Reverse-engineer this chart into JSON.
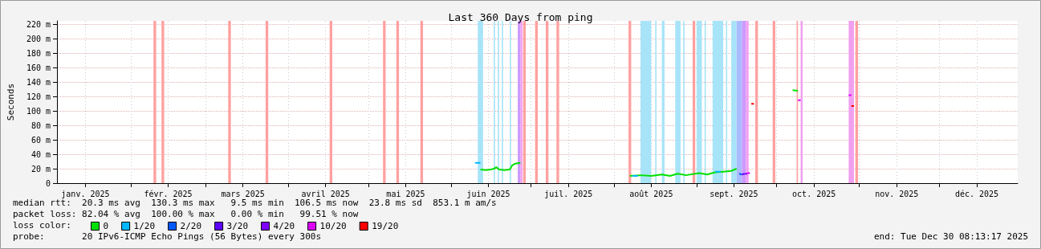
{
  "chart_data": {
    "type": "line",
    "title": "Last 360 Days from ping",
    "ylabel": "Seconds",
    "legend_title": "loss color:",
    "legend": "bottom left",
    "grid": true,
    "xlim": [
      "2025-01-04T08:13",
      "2025-12-30T08:13"
    ],
    "xticks": [
      {
        "value": "2025-01-15",
        "label": "janv. 2025"
      },
      {
        "value": "2025-02-01",
        "label": null
      },
      {
        "value": "2025-02-15",
        "label": "févr. 2025"
      },
      {
        "value": "2025-03-01",
        "label": null
      },
      {
        "value": "2025-03-15",
        "label": "mars 2025"
      },
      {
        "value": "2025-04-01",
        "label": null
      },
      {
        "value": "2025-04-15",
        "label": "avril 2025"
      },
      {
        "value": "2025-05-01",
        "label": null
      },
      {
        "value": "2025-05-15",
        "label": "mai 2025"
      },
      {
        "value": "2025-06-01",
        "label": null
      },
      {
        "value": "2025-06-15",
        "label": "juin 2025"
      },
      {
        "value": "2025-07-01",
        "label": null
      },
      {
        "value": "2025-07-15",
        "label": "juil. 2025"
      },
      {
        "value": "2025-08-01",
        "label": null
      },
      {
        "value": "2025-08-15",
        "label": "août 2025"
      },
      {
        "value": "2025-09-01",
        "label": null
      },
      {
        "value": "2025-09-15",
        "label": "sept. 2025"
      },
      {
        "value": "2025-10-01",
        "label": null
      },
      {
        "value": "2025-10-15",
        "label": "oct. 2025"
      },
      {
        "value": "2025-11-01",
        "label": null
      },
      {
        "value": "2025-11-15",
        "label": "nov. 2025"
      },
      {
        "value": "2025-12-01",
        "label": null
      },
      {
        "value": "2025-12-15",
        "label": "déc. 2025"
      }
    ],
    "ylim": [
      0,
      225
    ],
    "yticks": [
      0,
      {
        "value": 20,
        "label": "20 m"
      },
      {
        "value": 40,
        "label": "40 m"
      },
      {
        "value": 60,
        "label": "60 m"
      },
      {
        "value": 80,
        "label": "80 m"
      },
      {
        "value": 100,
        "label": "100 m"
      },
      {
        "value": 120,
        "label": "120 m"
      },
      {
        "value": 140,
        "label": "140 m"
      },
      {
        "value": 160,
        "label": "160 m"
      },
      {
        "value": 180,
        "label": "180 m"
      },
      {
        "value": 200,
        "label": "200 m"
      },
      {
        "value": 220,
        "label": "220 m"
      }
    ],
    "series": [
      {
        "name": "0",
        "color": "#00e000",
        "x": [
          "2025-06-12",
          "2025-06-14",
          "2025-06-16",
          "2025-06-17",
          "2025-06-18",
          "2025-06-19",
          "2025-06-21",
          "2025-06-23",
          "2025-06-24",
          "2025-06-25",
          "2025-06-27",
          "2025-07-15",
          "2025-08-07",
          "2025-08-11",
          "2025-08-15",
          "2025-08-19",
          "2025-08-22",
          "2025-08-25",
          "2025-08-28",
          "2025-09-02",
          "2025-09-05",
          "2025-09-08",
          "2025-09-11",
          "2025-09-14",
          "2025-09-16",
          "2025-09-25",
          "2025-10-07",
          "2025-10-09"
        ],
        "values": [
          19,
          18,
          19,
          20,
          22,
          19,
          18,
          19,
          25,
          27,
          28,
          null,
          10,
          11,
          10,
          12,
          10,
          13,
          11,
          14,
          12,
          15,
          16,
          17,
          20,
          null,
          129,
          128
        ]
      },
      {
        "name": "1/20",
        "color": "#00b8ff",
        "x": [
          "2025-06-10",
          "2025-06-12",
          "2025-07-15",
          "2025-08-08",
          "2025-08-10",
          "2025-08-20",
          "2025-09-08",
          "2025-09-10"
        ],
        "values": [
          28,
          28,
          null,
          10,
          10,
          null,
          16,
          16
        ]
      },
      {
        "name": "2/20",
        "color": "#0059ff",
        "x": [
          "2025-09-17",
          "2025-09-18"
        ],
        "values": [
          13,
          12
        ]
      },
      {
        "name": "3/20",
        "color": "#5e00ff",
        "x": [
          "2025-09-18",
          "2025-09-19"
        ],
        "values": [
          12,
          13
        ]
      },
      {
        "name": "4/20",
        "color": "#7e00ff",
        "x": [
          "2025-09-19",
          "2025-09-20"
        ],
        "values": [
          13,
          13
        ]
      },
      {
        "name": "10/20",
        "color": "#dd00ff",
        "x": [
          "2025-09-20",
          "2025-09-21",
          "2025-10-01",
          "2025-10-09",
          "2025-10-10",
          "2025-10-20",
          "2025-10-28",
          "2025-10-29"
        ],
        "values": [
          14,
          14,
          null,
          115,
          115,
          null,
          122,
          122
        ]
      },
      {
        "name": "19/20",
        "color": "#ff0000",
        "x": [
          "2025-09-21T12:00",
          "2025-09-22T12:00",
          "2025-10-10",
          "2025-10-29",
          "2025-10-30"
        ],
        "values": [
          110,
          110,
          null,
          107,
          107
        ]
      }
    ],
    "bands": [
      {
        "axis": "x",
        "from": "2025-02-09T12:00",
        "to": "2025-02-10T12:00",
        "color": "#ffa0a0"
      },
      {
        "axis": "x",
        "from": "2025-02-12T12:00",
        "to": "2025-02-13T12:00",
        "color": "#ffa0a0"
      },
      {
        "axis": "x",
        "from": "2025-03-09T12:00",
        "to": "2025-03-10T12:00",
        "color": "#ffa0a0"
      },
      {
        "axis": "x",
        "from": "2025-03-23T12:00",
        "to": "2025-03-24T12:00",
        "color": "#ffa0a0"
      },
      {
        "axis": "x",
        "from": "2025-04-16T12:00",
        "to": "2025-04-17T12:00",
        "color": "#ffa0a0"
      },
      {
        "axis": "x",
        "from": "2025-05-06T12:00",
        "to": "2025-05-07T12:00",
        "color": "#ffa0a0"
      },
      {
        "axis": "x",
        "from": "2025-05-11T12:00",
        "to": "2025-05-12T12:00",
        "color": "#ffa0a0"
      },
      {
        "axis": "x",
        "from": "2025-05-20T12:00",
        "to": "2025-05-21T12:00",
        "color": "#ffa0a0"
      },
      {
        "axis": "x",
        "from": "2025-06-11",
        "to": "2025-06-13",
        "color": "#a8e4f8"
      },
      {
        "axis": "x",
        "from": "2025-06-17",
        "to": "2025-06-17T12:00",
        "color": "#a8e4f8"
      },
      {
        "axis": "x",
        "from": "2025-06-18T12:00",
        "to": "2025-06-19",
        "color": "#a8e4f8"
      },
      {
        "axis": "x",
        "from": "2025-06-20",
        "to": "2025-06-20T12:00",
        "color": "#a8e4f8"
      },
      {
        "axis": "x",
        "from": "2025-06-23",
        "to": "2025-06-23T12:00",
        "color": "#a8e4f8"
      },
      {
        "axis": "x",
        "from": "2025-06-26",
        "to": "2025-06-27",
        "color": "#cc99ff"
      },
      {
        "axis": "x",
        "from": "2025-06-27",
        "to": "2025-06-27T18:00",
        "color": "#f0a0f0"
      },
      {
        "axis": "x",
        "from": "2025-06-28",
        "to": "2025-06-29",
        "color": "#ffa0a0"
      },
      {
        "axis": "x",
        "from": "2025-07-02T12:00",
        "to": "2025-07-03T12:00",
        "color": "#ffa0a0"
      },
      {
        "axis": "x",
        "from": "2025-07-06T12:00",
        "to": "2025-07-07T12:00",
        "color": "#ffa0a0"
      },
      {
        "axis": "x",
        "from": "2025-07-10T12:00",
        "to": "2025-07-11T12:00",
        "color": "#ffa0a0"
      },
      {
        "axis": "x",
        "from": "2025-08-06T12:00",
        "to": "2025-08-07T12:00",
        "color": "#ffa0a0"
      },
      {
        "axis": "x",
        "from": "2025-08-11",
        "to": "2025-08-15",
        "color": "#a8e4f8"
      },
      {
        "axis": "x",
        "from": "2025-08-16T12:00",
        "to": "2025-08-17",
        "color": "#a8e4f8"
      },
      {
        "axis": "x",
        "from": "2025-08-19",
        "to": "2025-08-20",
        "color": "#a8e4f8"
      },
      {
        "axis": "x",
        "from": "2025-08-24",
        "to": "2025-08-26",
        "color": "#a8e4f8"
      },
      {
        "axis": "x",
        "from": "2025-08-27",
        "to": "2025-08-27T12:00",
        "color": "#a8e4f8"
      },
      {
        "axis": "x",
        "from": "2025-08-30T12:00",
        "to": "2025-08-31T12:00",
        "color": "#ffa0a0"
      },
      {
        "axis": "x",
        "from": "2025-09-01",
        "to": "2025-09-03",
        "color": "#a8e4f8"
      },
      {
        "axis": "x",
        "from": "2025-09-04",
        "to": "2025-09-04T12:00",
        "color": "#a8e4f8"
      },
      {
        "axis": "x",
        "from": "2025-09-07",
        "to": "2025-09-11",
        "color": "#a8e4f8"
      },
      {
        "axis": "x",
        "from": "2025-09-12",
        "to": "2025-09-12T12:00",
        "color": "#a8e4f8"
      },
      {
        "axis": "x",
        "from": "2025-09-14",
        "to": "2025-09-16",
        "color": "#a8e4f8"
      },
      {
        "axis": "x",
        "from": "2025-09-16",
        "to": "2025-09-18",
        "color": "#aabbff"
      },
      {
        "axis": "x",
        "from": "2025-09-18",
        "to": "2025-09-19T12:00",
        "color": "#cc99ff"
      },
      {
        "axis": "x",
        "from": "2025-09-19T12:00",
        "to": "2025-09-20T12:00",
        "color": "#f0a0f0"
      },
      {
        "axis": "x",
        "from": "2025-09-23",
        "to": "2025-09-24",
        "color": "#ffa0a0"
      },
      {
        "axis": "x",
        "from": "2025-09-29T12:00",
        "to": "2025-09-30T12:00",
        "color": "#ffa0a0"
      },
      {
        "axis": "x",
        "from": "2025-10-08T12:00",
        "to": "2025-10-09",
        "color": "#ffa0a0"
      },
      {
        "axis": "x",
        "from": "2025-10-10",
        "to": "2025-10-10T18:00",
        "color": "#f0a0f0"
      },
      {
        "axis": "x",
        "from": "2025-10-28",
        "to": "2025-10-30",
        "color": "#f0a0f0"
      },
      {
        "axis": "x",
        "from": "2025-10-30T12:00",
        "to": "2025-10-31T12:00",
        "color": "#ffa0a0"
      }
    ],
    "annotations": [
      "median rtt:  20.3 ms avg  130.3 ms max   9.5 ms min  106.5 ms now  23.8 ms sd  853.1 m am/s",
      "packet loss: 82.04 % avg  100.00 % max   0.00 % min   99.51 % now",
      "probe:       20 IPv6-ICMP Echo Pings (56 Bytes) every 300s",
      "end: Tue Dec 30 08:13:17 2025"
    ]
  }
}
